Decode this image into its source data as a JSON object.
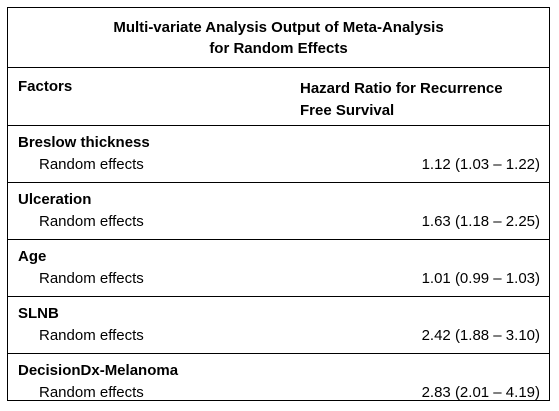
{
  "table": {
    "title_line1": "Multi-variate Analysis Output of Meta-Analysis",
    "title_line2": "for Random Effects",
    "header": {
      "factors": "Factors",
      "hr_line1": "Hazard Ratio for Recurrence",
      "hr_line2": "Free Survival"
    },
    "rows": [
      {
        "factor": "Breslow thickness",
        "effect": "Random effects",
        "value": "1.12 (1.03 – 1.22)"
      },
      {
        "factor": "Ulceration",
        "effect": "Random effects",
        "value": "1.63 (1.18 – 2.25)"
      },
      {
        "factor": "Age",
        "effect": "Random effects",
        "value": "1.01 (0.99 – 1.03)"
      },
      {
        "factor": "SLNB",
        "effect": "Random effects",
        "value": "2.42 (1.88 – 3.10)"
      },
      {
        "factor": "DecisionDx-Melanoma",
        "effect": "Random effects",
        "value": "2.83 (2.01 – 4.19)"
      }
    ]
  }
}
